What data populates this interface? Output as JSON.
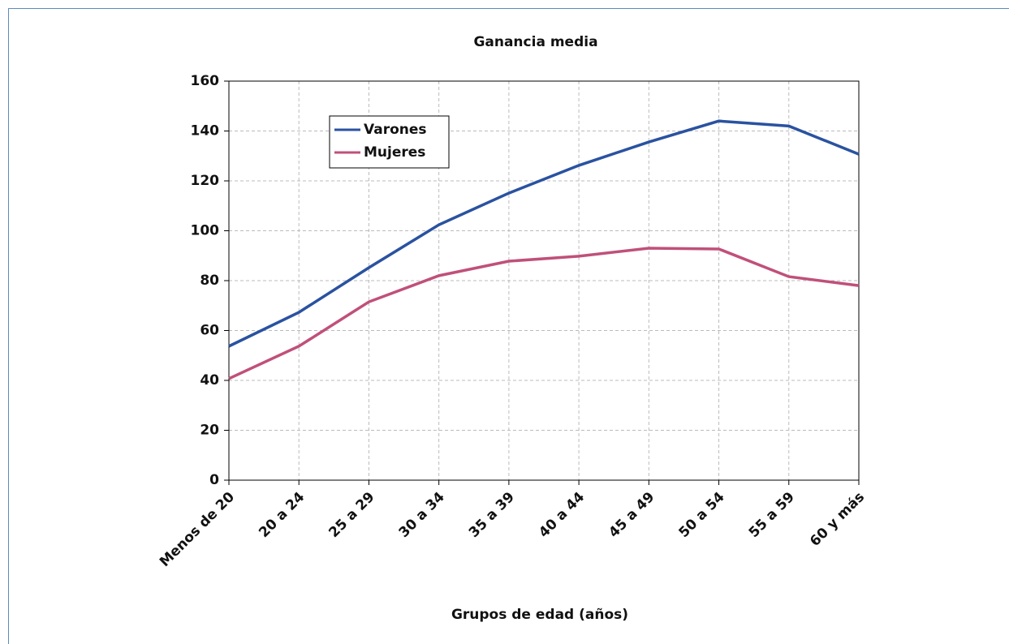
{
  "chart_data": {
    "type": "line",
    "title": "Ganancia media",
    "x_label": "Grupos de edad (años)",
    "categories": [
      "Menos de 20",
      "20 a 24",
      "25 a 29",
      "30 a 34",
      "35 a 39",
      "40 a 44",
      "45 a 49",
      "50 a 54",
      "55 a 59",
      "60 y más"
    ],
    "series": [
      {
        "name": "Varones",
        "color": "#2a52a0",
        "values": [
          53.7,
          67.3,
          85.2,
          102.4,
          115.1,
          126.2,
          135.6,
          144,
          142,
          130.7
        ]
      },
      {
        "name": "Mujeres",
        "color": "#c0507a",
        "values": [
          40.7,
          53.7,
          71.5,
          82,
          87.8,
          89.8,
          93,
          92.7,
          81.6,
          78
        ]
      }
    ],
    "ylim": [
      0,
      160
    ],
    "yticks": [
      0,
      20,
      40,
      60,
      80,
      100,
      120,
      140,
      160
    ],
    "grid": true,
    "legend": "upper left"
  }
}
